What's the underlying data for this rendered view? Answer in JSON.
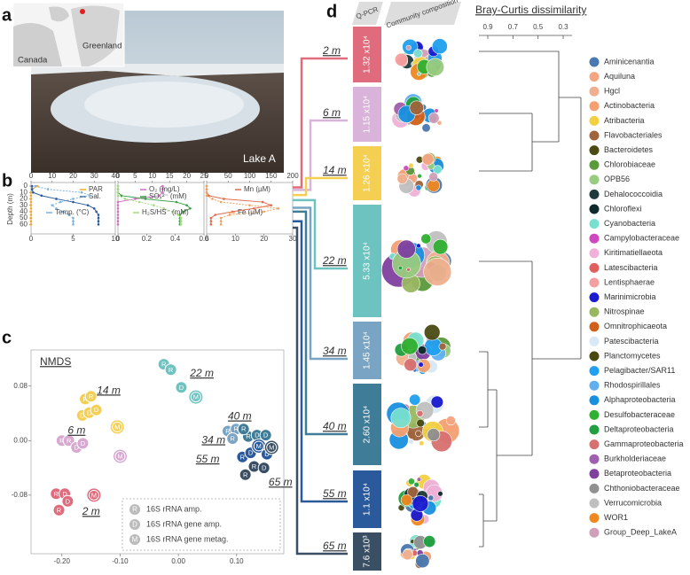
{
  "panel_labels": [
    "a",
    "b",
    "c",
    "d"
  ],
  "map_labels": [
    "Greenland",
    "Canada"
  ],
  "photo_label": "Lake A",
  "profiles": {
    "ylabel": "Depth (m)",
    "ylim": [
      0,
      72
    ],
    "yticks": [
      0,
      10,
      20,
      30,
      40,
      50,
      60
    ],
    "depths": [
      0,
      5,
      10,
      15,
      20,
      25,
      30,
      35,
      40,
      45,
      50,
      55,
      60
    ],
    "subplots": [
      {
        "top": {
          "xlim": [
            0,
            40
          ],
          "xticks": [
            0,
            10,
            20,
            30,
            40
          ]
        },
        "bottom": {
          "xlim": [
            0,
            10
          ],
          "xticks": [
            0,
            5,
            10
          ]
        },
        "series": [
          {
            "name": "PAR",
            "color": "#f0a830",
            "axis": "top",
            "values": [
              3,
              0.5,
              0,
              0,
              0,
              0,
              0,
              0,
              0,
              0,
              0,
              0,
              0
            ]
          },
          {
            "name": "Sal.",
            "color": "#2a5a9c",
            "axis": "top",
            "values": [
              0.5,
              0.5,
              1,
              5,
              12,
              20,
              27,
              30,
              31,
              32,
              32,
              32,
              32
            ]
          },
          {
            "name": "Temp. (°C)",
            "color": "#7fb2de",
            "axis": "bottom",
            "values": [
              0.5,
              2,
              6,
              7,
              5,
              3.5,
              2.5,
              3,
              3.8,
              4.5,
              5,
              5,
              5
            ]
          }
        ]
      },
      {
        "top": {
          "xlim": [
            0,
            25
          ],
          "xticks": [
            0,
            5,
            10,
            15,
            20,
            25
          ]
        },
        "bottom": {
          "xlim": [
            0,
            0.6
          ],
          "xticks": [
            0,
            0.2,
            0.4,
            0.6
          ]
        },
        "series": [
          {
            "name": "O₂ (mg/L)",
            "color": "#d070c0",
            "axis": "top",
            "values": [
              13,
              13,
              13,
              12,
              5,
              0,
              0,
              0,
              0,
              0,
              0,
              0,
              0
            ]
          },
          {
            "name": "SO₄²⁻ (mM)",
            "color": "#3aa048",
            "axis": "top",
            "values": [
              0,
              0,
              0,
              1,
              8,
              17,
              20,
              21,
              19,
              18,
              18,
              18,
              18
            ]
          },
          {
            "name": "H₂S/HS⁻ (mM)",
            "color": "#a8d880",
            "axis": "bottom",
            "values": [
              0,
              0,
              0,
              0,
              0.05,
              0.15,
              0.25,
              0.32,
              0.38,
              0.42,
              0.44,
              0.44,
              0.44
            ]
          }
        ]
      },
      {
        "top": {
          "xlim": [
            0,
            200
          ],
          "xticks": [
            0,
            50,
            100,
            150,
            200
          ]
        },
        "bottom": {
          "xlim": [
            0,
            30
          ],
          "xticks": [
            0,
            10,
            20,
            30
          ]
        },
        "series": [
          {
            "name": "Mn (µM)",
            "color": "#e06a50",
            "axis": "top",
            "values": [
              0,
              0,
              0,
              5,
              40,
              130,
              150,
              110,
              60,
              20,
              10,
              10,
              10
            ]
          },
          {
            "name": "Fe (µM)",
            "color": "#f0a060",
            "axis": "bottom",
            "values": [
              0,
              0,
              0,
              0,
              2,
              5,
              15,
              25,
              20,
              8,
              5,
              5,
              5
            ]
          }
        ]
      }
    ]
  },
  "nmds": {
    "title": "NMDS",
    "xlim": [
      -0.253,
      0.181
    ],
    "ylim": [
      -0.166,
      0.133
    ],
    "xticks": [
      {
        "value": -0.2,
        "label": "-0.20"
      },
      {
        "value": -0.1,
        "label": "-0.10"
      },
      {
        "value": 0,
        "label": "0.00"
      },
      {
        "value": 0.1,
        "label": "0.10"
      }
    ],
    "yticks": [
      {
        "value": 0.08,
        "label": "0.08"
      },
      {
        "value": 0,
        "label": "0.00"
      },
      {
        "value": -0.08,
        "label": "-0.08"
      }
    ],
    "groups": [
      {
        "name": "2 m",
        "color": "#e06b7c",
        "points": [
          {
            "x": -0.21,
            "y": -0.078,
            "label": "R"
          },
          {
            "x": -0.195,
            "y": -0.078,
            "label": "D"
          },
          {
            "x": -0.19,
            "y": -0.089,
            "label": "D"
          },
          {
            "x": -0.145,
            "y": -0.08,
            "label": "M"
          },
          {
            "x": -0.205,
            "y": -0.102,
            "label": "R"
          }
        ]
      },
      {
        "name": "6 m",
        "color": "#d7a8d0",
        "points": [
          {
            "x": -0.2,
            "y": 0.0,
            "label": "R"
          },
          {
            "x": -0.188,
            "y": 0.0,
            "label": "R"
          },
          {
            "x": -0.175,
            "y": -0.01,
            "label": "D"
          },
          {
            "x": -0.164,
            "y": -0.004,
            "label": "D"
          },
          {
            "x": -0.1,
            "y": -0.023,
            "label": "M"
          }
        ]
      },
      {
        "name": "14 m",
        "color": "#f5cf52",
        "points": [
          {
            "x": -0.16,
            "y": 0.061,
            "label": "R"
          },
          {
            "x": -0.15,
            "y": 0.065,
            "label": "R"
          },
          {
            "x": -0.165,
            "y": 0.037,
            "label": "D"
          },
          {
            "x": -0.153,
            "y": 0.041,
            "label": "D"
          },
          {
            "x": -0.141,
            "y": 0.045,
            "label": "D"
          },
          {
            "x": -0.105,
            "y": 0.02,
            "label": "M"
          }
        ]
      },
      {
        "name": "22 m",
        "color": "#6cc3c0",
        "points": [
          {
            "x": -0.025,
            "y": 0.112,
            "label": "R"
          },
          {
            "x": -0.013,
            "y": 0.104,
            "label": "R"
          },
          {
            "x": 0.005,
            "y": 0.078,
            "label": "D"
          },
          {
            "x": 0.03,
            "y": 0.064,
            "label": "M"
          }
        ]
      },
      {
        "name": "34 m",
        "color": "#7aa4c3",
        "points": [
          {
            "x": 0.085,
            "y": 0.014,
            "label": "R"
          },
          {
            "x": 0.099,
            "y": 0.017,
            "label": "R"
          },
          {
            "x": 0.093,
            "y": 0.003,
            "label": "R"
          }
        ]
      },
      {
        "name": "40 m",
        "color": "#3f7c98",
        "points": [
          {
            "x": 0.12,
            "y": 0.006,
            "label": "R"
          },
          {
            "x": 0.135,
            "y": 0.008,
            "label": "D"
          },
          {
            "x": 0.15,
            "y": 0.008,
            "label": "D"
          },
          {
            "x": 0.112,
            "y": 0.017,
            "label": "R"
          }
        ]
      },
      {
        "name": "55 m",
        "color": "#2a5a9c",
        "points": [
          {
            "x": 0.11,
            "y": -0.024,
            "label": "R"
          },
          {
            "x": 0.124,
            "y": -0.018,
            "label": "D"
          },
          {
            "x": 0.138,
            "y": -0.008,
            "label": "M"
          },
          {
            "x": 0.152,
            "y": -0.02,
            "label": "D"
          }
        ]
      },
      {
        "name": "65 m",
        "color": "#3a4f64",
        "points": [
          {
            "x": 0.115,
            "y": -0.05,
            "label": "R"
          },
          {
            "x": 0.13,
            "y": -0.038,
            "label": "R"
          },
          {
            "x": 0.16,
            "y": -0.01,
            "label": "M"
          },
          {
            "x": 0.147,
            "y": -0.04,
            "label": "D"
          }
        ]
      }
    ],
    "legend": [
      {
        "letter": "R",
        "text": "16S rRNA amp."
      },
      {
        "letter": "D",
        "text": "16S rRNA gene amp."
      },
      {
        "letter": "M",
        "text": "16S rRNA gene metag."
      }
    ]
  },
  "community": {
    "headers": [
      "Q-PCR",
      "Community composition"
    ],
    "samples": [
      {
        "depth": "2 m",
        "qpcr": "1.32 x10⁴",
        "color": "#e06b7c"
      },
      {
        "depth": "6 m",
        "qpcr": "1.15 x10⁴",
        "color": "#d9b3d9"
      },
      {
        "depth": "14 m",
        "qpcr": "1.26 x10⁴",
        "color": "#f5cf52"
      },
      {
        "depth": "22 m",
        "qpcr": "5.33 x10⁴",
        "color": "#6cc3c0"
      },
      {
        "depth": "34 m",
        "qpcr": "1.45 x10⁴",
        "color": "#7aa4c3"
      },
      {
        "depth": "40 m",
        "qpcr": "2.60 x10⁴",
        "color": "#3f7c98"
      },
      {
        "depth": "55 m",
        "qpcr": "1.1 x10⁴",
        "color": "#2a5a9c"
      },
      {
        "depth": "65 m",
        "qpcr": "7.6 x10³",
        "color": "#3a4f64"
      }
    ],
    "dendrogram": {
      "title": "Bray-Curtis dissimilarity",
      "ticks": [
        0.9,
        0.7,
        0.5,
        0.3
      ]
    },
    "taxa": [
      {
        "name": "Aminicenantia",
        "color": "#4a78b0"
      },
      {
        "name": "Aquiluna",
        "color": "#f4a582"
      },
      {
        "name": "Hgcl",
        "color": "#f0b090"
      },
      {
        "name": "Actinobacteria",
        "color": "#f4a070"
      },
      {
        "name": "Atribacteria",
        "color": "#f2d040"
      },
      {
        "name": "Flavobacteriales",
        "color": "#a0643c"
      },
      {
        "name": "Bacteroidetes",
        "color": "#4a4a14"
      },
      {
        "name": "Chlorobiaceae",
        "color": "#5a9a3a"
      },
      {
        "name": "OPB56",
        "color": "#98cc80"
      },
      {
        "name": "Dehalococcoidia",
        "color": "#1e3a3a"
      },
      {
        "name": "Chloroflexi",
        "color": "#0e2a2a"
      },
      {
        "name": "Cyanobacteria",
        "color": "#78e0d0"
      },
      {
        "name": "Campylobacteraceae",
        "color": "#d048c0"
      },
      {
        "name": "Kiritimatiellaeota",
        "color": "#f0b0d8"
      },
      {
        "name": "Latescibacteria",
        "color": "#e06060"
      },
      {
        "name": "Lentisphaerae",
        "color": "#f4a0a0"
      },
      {
        "name": "Marinimicrobia",
        "color": "#1a1ad0"
      },
      {
        "name": "Nitrospinae",
        "color": "#98b860"
      },
      {
        "name": "Omnitrophicaeota",
        "color": "#d06018"
      },
      {
        "name": "Patescibacteria",
        "color": "#d8e8f4"
      },
      {
        "name": "Planctomycetes",
        "color": "#4a4a10"
      },
      {
        "name": "Pelagibacter/SAR11",
        "color": "#20a0f0"
      },
      {
        "name": "Rhodospirillales",
        "color": "#60b0f0"
      },
      {
        "name": "Alphaproteobacteria",
        "color": "#1890e0"
      },
      {
        "name": "Desulfobacteraceae",
        "color": "#30b030"
      },
      {
        "name": "Deltaproteobacteria",
        "color": "#20a040"
      },
      {
        "name": "Gammaproteobacteria",
        "color": "#d87070"
      },
      {
        "name": "Burkholderiaceae",
        "color": "#a060b0"
      },
      {
        "name": "Betaproteobacteria",
        "color": "#8040a0"
      },
      {
        "name": "Chthoniobacteraceae",
        "color": "#909090"
      },
      {
        "name": "Verrucomicrobia",
        "color": "#c0c0c0"
      },
      {
        "name": "WOR1",
        "color": "#f08820"
      },
      {
        "name": "Group_Deep_LakeA",
        "color": "#d0a0b8"
      }
    ]
  }
}
